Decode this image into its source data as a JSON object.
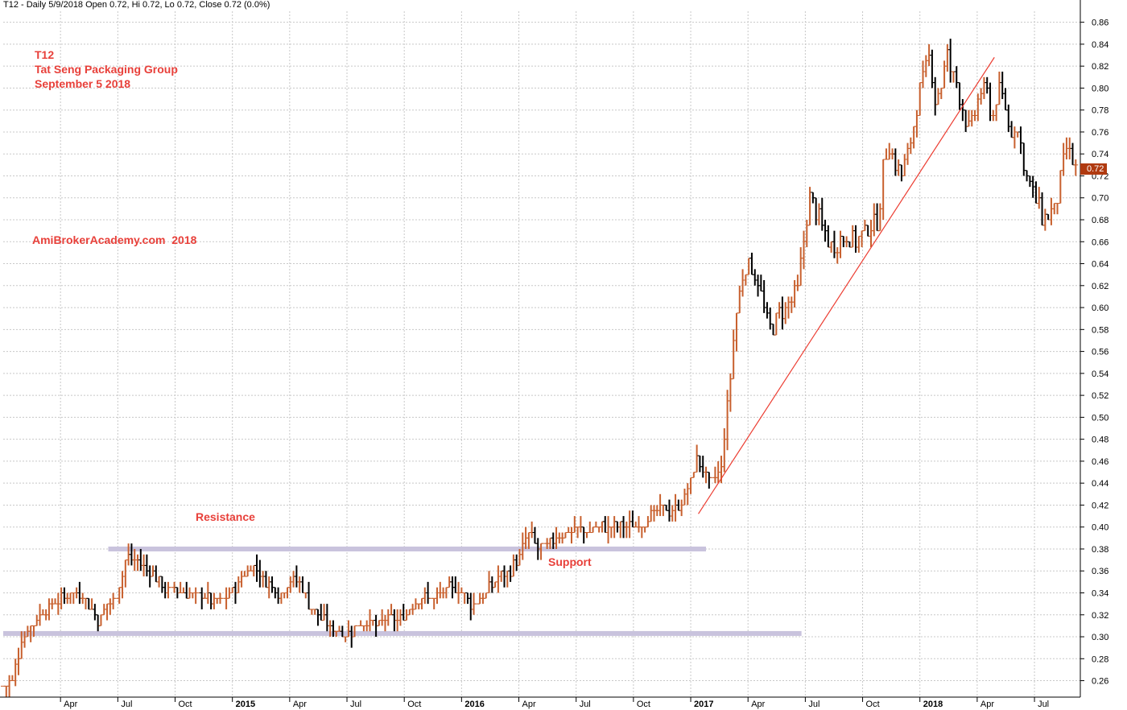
{
  "header": {
    "text": "T12 - Daily 5/9/2018 Open 0.72, Hi 0.72, Lo 0.72, Close 0.72 (0.0%)"
  },
  "annotations": {
    "ticker": "T12",
    "company": "Tat Seng Packaging Group",
    "date": "September 5 2018",
    "watermark": "AmiBrokerAcademy.com  2018",
    "resistance": "Resistance",
    "support": "Support"
  },
  "last_price_label": "0.72",
  "colors": {
    "up_bar": "#c8602e",
    "down_bar": "#000000",
    "annotation": "#e8403a",
    "level_band": "#c9c3dd",
    "trendline": "#ec3d32",
    "grid": "#c8c8c8",
    "price_tag": "#b03a10"
  },
  "chart_data": {
    "type": "ohlc",
    "title": "T12 - Daily 5/9/2018 Open 0.72, Hi 0.72, Lo 0.72, Close 0.72 (0.0%)",
    "y_ticks": [
      "0.26",
      "0.28",
      "0.30",
      "0.32",
      "0.34",
      "0.36",
      "0.38",
      "0.40",
      "0.42",
      "0.44",
      "0.46",
      "0.48",
      "0.50",
      "0.52",
      "0.54",
      "0.56",
      "0.58",
      "0.60",
      "0.62",
      "0.64",
      "0.66",
      "0.68",
      "0.70",
      "0.72",
      "0.74",
      "0.76",
      "0.78",
      "0.80",
      "0.82",
      "0.84",
      "0.86"
    ],
    "ylim": [
      0.245,
      0.87
    ],
    "x_labels": [
      {
        "label": "Apr",
        "month": 3,
        "bold": false
      },
      {
        "label": "Jul",
        "month": 6,
        "bold": false
      },
      {
        "label": "Oct",
        "month": 9,
        "bold": false
      },
      {
        "label": "2015",
        "month": 12,
        "bold": true
      },
      {
        "label": "Apr",
        "month": 15,
        "bold": false
      },
      {
        "label": "Jul",
        "month": 18,
        "bold": false
      },
      {
        "label": "Oct",
        "month": 21,
        "bold": false
      },
      {
        "label": "2016",
        "month": 24,
        "bold": true
      },
      {
        "label": "Apr",
        "month": 27,
        "bold": false
      },
      {
        "label": "Jul",
        "month": 30,
        "bold": false
      },
      {
        "label": "Oct",
        "month": 33,
        "bold": false
      },
      {
        "label": "2017",
        "month": 36,
        "bold": true
      },
      {
        "label": "Apr",
        "month": 39,
        "bold": false
      },
      {
        "label": "Jul",
        "month": 42,
        "bold": false
      },
      {
        "label": "Oct",
        "month": 45,
        "bold": false
      },
      {
        "label": "2018",
        "month": 48,
        "bold": true
      },
      {
        "label": "Apr",
        "month": 51,
        "bold": false
      },
      {
        "label": "Jul",
        "month": 54,
        "bold": false
      }
    ],
    "xlim_months": [
      0.0,
      56.4
    ],
    "price_path": [
      [
        0.0,
        0.255
      ],
      [
        0.5,
        0.26
      ],
      [
        1.0,
        0.3
      ],
      [
        1.5,
        0.31
      ],
      [
        2.0,
        0.32
      ],
      [
        2.5,
        0.33
      ],
      [
        3.0,
        0.335
      ],
      [
        3.5,
        0.34
      ],
      [
        4.0,
        0.34
      ],
      [
        4.5,
        0.33
      ],
      [
        5.0,
        0.315
      ],
      [
        5.5,
        0.33
      ],
      [
        6.0,
        0.34
      ],
      [
        6.5,
        0.375
      ],
      [
        7.0,
        0.37
      ],
      [
        7.5,
        0.36
      ],
      [
        8.0,
        0.355
      ],
      [
        8.5,
        0.34
      ],
      [
        9.0,
        0.345
      ],
      [
        9.5,
        0.34
      ],
      [
        10.0,
        0.335
      ],
      [
        10.5,
        0.34
      ],
      [
        11.0,
        0.33
      ],
      [
        11.5,
        0.335
      ],
      [
        12.0,
        0.34
      ],
      [
        12.5,
        0.355
      ],
      [
        13.0,
        0.365
      ],
      [
        13.5,
        0.355
      ],
      [
        14.0,
        0.345
      ],
      [
        14.5,
        0.34
      ],
      [
        15.0,
        0.35
      ],
      [
        15.5,
        0.35
      ],
      [
        16.0,
        0.33
      ],
      [
        16.5,
        0.32
      ],
      [
        17.0,
        0.31
      ],
      [
        17.5,
        0.305
      ],
      [
        18.0,
        0.3
      ],
      [
        18.5,
        0.31
      ],
      [
        19.0,
        0.315
      ],
      [
        19.5,
        0.31
      ],
      [
        20.0,
        0.315
      ],
      [
        20.5,
        0.315
      ],
      [
        21.0,
        0.32
      ],
      [
        21.5,
        0.33
      ],
      [
        22.0,
        0.335
      ],
      [
        22.5,
        0.335
      ],
      [
        23.0,
        0.34
      ],
      [
        23.5,
        0.345
      ],
      [
        24.0,
        0.34
      ],
      [
        24.5,
        0.33
      ],
      [
        25.0,
        0.335
      ],
      [
        25.5,
        0.345
      ],
      [
        26.0,
        0.355
      ],
      [
        26.5,
        0.36
      ],
      [
        27.0,
        0.37
      ],
      [
        27.5,
        0.395
      ],
      [
        28.0,
        0.38
      ],
      [
        28.5,
        0.385
      ],
      [
        29.0,
        0.39
      ],
      [
        29.5,
        0.395
      ],
      [
        30.0,
        0.4
      ],
      [
        30.5,
        0.395
      ],
      [
        31.0,
        0.4
      ],
      [
        31.5,
        0.4
      ],
      [
        32.0,
        0.4
      ],
      [
        32.5,
        0.4
      ],
      [
        33.0,
        0.4
      ],
      [
        33.5,
        0.405
      ],
      [
        34.0,
        0.41
      ],
      [
        34.5,
        0.415
      ],
      [
        35.0,
        0.415
      ],
      [
        35.5,
        0.42
      ],
      [
        36.0,
        0.44
      ],
      [
        36.3,
        0.465
      ],
      [
        36.7,
        0.45
      ],
      [
        37.0,
        0.44
      ],
      [
        37.3,
        0.445
      ],
      [
        37.6,
        0.455
      ],
      [
        38.0,
        0.52
      ],
      [
        38.3,
        0.58
      ],
      [
        38.6,
        0.62
      ],
      [
        38.9,
        0.64
      ],
      [
        39.2,
        0.635
      ],
      [
        39.5,
        0.625
      ],
      [
        39.8,
        0.6
      ],
      [
        40.1,
        0.58
      ],
      [
        40.4,
        0.585
      ],
      [
        40.7,
        0.595
      ],
      [
        41.0,
        0.6
      ],
      [
        41.3,
        0.605
      ],
      [
        41.6,
        0.615
      ],
      [
        41.9,
        0.66
      ],
      [
        42.2,
        0.7
      ],
      [
        42.5,
        0.69
      ],
      [
        42.8,
        0.675
      ],
      [
        43.1,
        0.665
      ],
      [
        43.4,
        0.655
      ],
      [
        43.7,
        0.66
      ],
      [
        44.0,
        0.665
      ],
      [
        44.3,
        0.665
      ],
      [
        44.6,
        0.66
      ],
      [
        44.9,
        0.665
      ],
      [
        45.2,
        0.67
      ],
      [
        45.5,
        0.675
      ],
      [
        45.8,
        0.68
      ],
      [
        46.1,
        0.73
      ],
      [
        46.4,
        0.75
      ],
      [
        46.7,
        0.73
      ],
      [
        47.0,
        0.72
      ],
      [
        47.3,
        0.735
      ],
      [
        47.6,
        0.76
      ],
      [
        47.9,
        0.79
      ],
      [
        48.2,
        0.81
      ],
      [
        48.5,
        0.83
      ],
      [
        48.8,
        0.79
      ],
      [
        49.1,
        0.8
      ],
      [
        49.4,
        0.83
      ],
      [
        49.7,
        0.81
      ],
      [
        50.0,
        0.8
      ],
      [
        50.3,
        0.78
      ],
      [
        50.6,
        0.76
      ],
      [
        50.9,
        0.775
      ],
      [
        51.2,
        0.8
      ],
      [
        51.5,
        0.795
      ],
      [
        51.8,
        0.77
      ],
      [
        52.1,
        0.8
      ],
      [
        52.4,
        0.79
      ],
      [
        52.7,
        0.76
      ],
      [
        53.0,
        0.765
      ],
      [
        53.3,
        0.745
      ],
      [
        53.6,
        0.72
      ],
      [
        53.9,
        0.705
      ],
      [
        54.2,
        0.69
      ],
      [
        54.5,
        0.68
      ],
      [
        54.8,
        0.685
      ],
      [
        55.1,
        0.69
      ],
      [
        55.4,
        0.72
      ],
      [
        55.7,
        0.745
      ],
      [
        56.0,
        0.73
      ],
      [
        56.3,
        0.72
      ]
    ],
    "levels": [
      {
        "name": "resistance",
        "value": 0.38,
        "from_month": 5.5,
        "to_month": 36.8
      },
      {
        "name": "support",
        "value": 0.303,
        "from_month": 0.0,
        "to_month": 41.8
      }
    ],
    "trendline": {
      "from": [
        36.4,
        0.412
      ],
      "to": [
        51.9,
        0.828
      ]
    },
    "last_price": 0.72
  }
}
